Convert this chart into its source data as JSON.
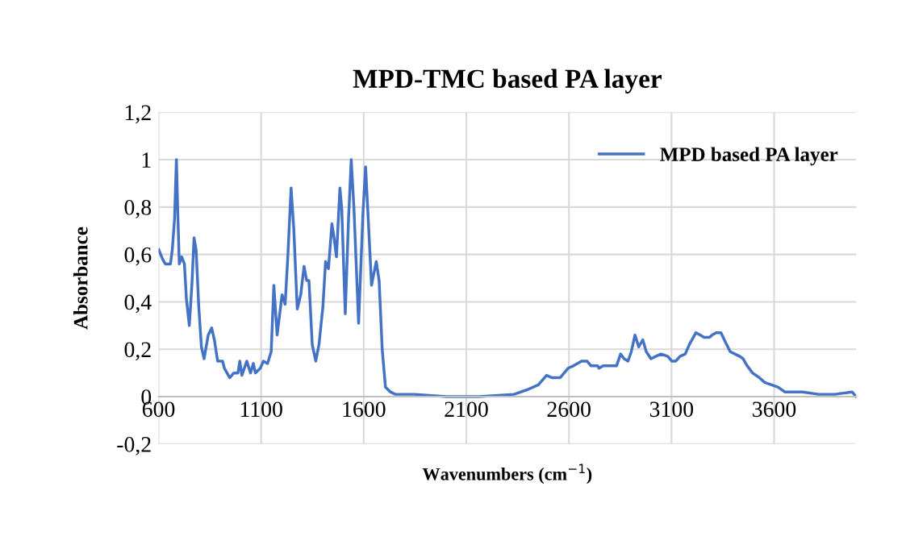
{
  "chart_data": {
    "type": "line",
    "title": "MPD-TMC based PA layer",
    "xlabel": "Wavenumbers (cm$^{−1}$)",
    "ylabel": "Absorbance",
    "xlim": [
      600,
      4000
    ],
    "xticks": [
      600,
      1100,
      1600,
      2100,
      2600,
      3100,
      3600
    ],
    "ylim": [
      -0.2,
      1.2
    ],
    "yticks": [
      {
        "value": -0.2,
        "label": "-0,2"
      },
      0,
      {
        "value": 0.2,
        "label": "0,2"
      },
      {
        "value": 0.4,
        "label": "0,4"
      },
      {
        "value": 0.6,
        "label": "0,6"
      },
      {
        "value": 0.8,
        "label": "0,8"
      },
      1,
      {
        "value": 1.2,
        "label": "1,2"
      }
    ],
    "grid": true,
    "legend": "top right",
    "marker": "none",
    "line_style": "solid",
    "series": [
      {
        "name": "MPD based PA layer",
        "color": "#4472c4",
        "x": [
          601,
          620,
          633,
          658,
          667,
          678,
          687,
          694,
          701,
          713,
          726,
          736,
          750,
          763,
          773,
          783,
          796,
          809,
          822,
          842,
          859,
          872,
          888,
          912,
          921,
          947,
          967,
          987,
          996,
          1006,
          1030,
          1048,
          1062,
          1072,
          1096,
          1111,
          1131,
          1149,
          1162,
          1178,
          1202,
          1217,
          1230,
          1246,
          1259,
          1276,
          1293,
          1309,
          1322,
          1333,
          1349,
          1366,
          1382,
          1401,
          1414,
          1428,
          1445,
          1457,
          1467,
          1484,
          1493,
          1510,
          1526,
          1539,
          1552,
          1575,
          1596,
          1609,
          1622,
          1638,
          1661,
          1675,
          1690,
          1706,
          1730,
          1754,
          1846,
          2004,
          2162,
          2333,
          2399,
          2451,
          2491,
          2517,
          2557,
          2596,
          2622,
          2662,
          2688,
          2708,
          2740,
          2747,
          2767,
          2832,
          2852,
          2869,
          2888,
          2904,
          2922,
          2940,
          2960,
          2977,
          3000,
          3023,
          3049,
          3082,
          3101,
          3121,
          3141,
          3167,
          3187,
          3219,
          3239,
          3259,
          3285,
          3298,
          3318,
          3341,
          3363,
          3386,
          3409,
          3433,
          3449,
          3469,
          3495,
          3528,
          3554,
          3587,
          3620,
          3652,
          3738,
          3817,
          3896,
          3980,
          4000
        ],
        "values": [
          0.62,
          0.58,
          0.56,
          0.56,
          0.62,
          0.75,
          1.0,
          0.77,
          0.56,
          0.59,
          0.56,
          0.41,
          0.3,
          0.48,
          0.67,
          0.62,
          0.38,
          0.21,
          0.16,
          0.26,
          0.29,
          0.24,
          0.15,
          0.15,
          0.12,
          0.08,
          0.1,
          0.1,
          0.15,
          0.09,
          0.15,
          0.1,
          0.14,
          0.1,
          0.12,
          0.15,
          0.14,
          0.19,
          0.47,
          0.26,
          0.43,
          0.39,
          0.59,
          0.88,
          0.71,
          0.37,
          0.43,
          0.55,
          0.49,
          0.49,
          0.22,
          0.15,
          0.22,
          0.38,
          0.57,
          0.54,
          0.73,
          0.66,
          0.59,
          0.88,
          0.79,
          0.35,
          0.75,
          1.0,
          0.8,
          0.31,
          0.77,
          0.97,
          0.75,
          0.47,
          0.57,
          0.49,
          0.2,
          0.04,
          0.02,
          0.01,
          0.01,
          0.0,
          0.0,
          0.01,
          0.03,
          0.05,
          0.09,
          0.08,
          0.08,
          0.12,
          0.13,
          0.15,
          0.15,
          0.13,
          0.13,
          0.12,
          0.13,
          0.13,
          0.18,
          0.16,
          0.15,
          0.19,
          0.26,
          0.21,
          0.24,
          0.19,
          0.16,
          0.17,
          0.18,
          0.17,
          0.15,
          0.15,
          0.17,
          0.18,
          0.22,
          0.27,
          0.26,
          0.25,
          0.25,
          0.26,
          0.27,
          0.27,
          0.23,
          0.19,
          0.18,
          0.17,
          0.16,
          0.13,
          0.1,
          0.08,
          0.06,
          0.05,
          0.04,
          0.02,
          0.02,
          0.01,
          0.01,
          0.02,
          0.0
        ]
      }
    ]
  }
}
